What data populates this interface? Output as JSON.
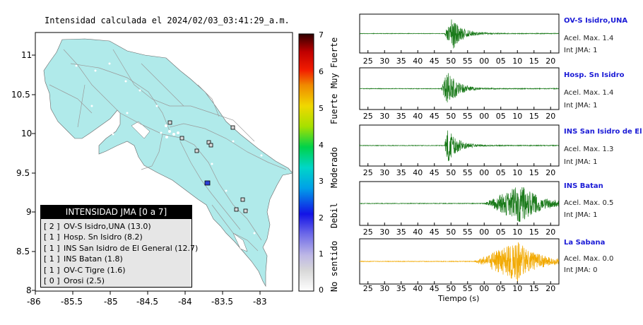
{
  "map": {
    "title": "Intensidad calculada el 2024/02/03_03:41:29_a.m.",
    "x_ticks": [
      "-86",
      "-85.5",
      "-85",
      "-84.5",
      "-84",
      "-83.5",
      "-83"
    ],
    "y_ticks": [
      "11",
      "10.5",
      "10",
      "9.5",
      "9",
      "8.5",
      "8"
    ],
    "land_color": "#b0eaea",
    "legend_title": "INTENSIDAD JMA [0 a 7]",
    "legend_items": [
      {
        "bracket": "[ 2 ]",
        "text": "OV-S Isidro,UNA (13.0)"
      },
      {
        "bracket": "[ 1 ]",
        "text": "Hosp. Sn Isidro (8.2)"
      },
      {
        "bracket": "[ 1 ]",
        "text": "INS San Isidro de El General (12.7)"
      },
      {
        "bracket": "[ 1 ]",
        "text": "INS Batan (1.8)"
      },
      {
        "bracket": "[ 1 ]",
        "text": "OV-C Tigre (1.6)"
      },
      {
        "bracket": "[ 0 ]",
        "text": "Orosi (2.5)"
      }
    ]
  },
  "colorbar": {
    "tick_labels": [
      "0",
      "1",
      "2",
      "3",
      "4",
      "5",
      "6",
      "7"
    ],
    "category_labels": [
      "No sentido",
      "Debil",
      "Moderado",
      "Fuerte",
      "Muy Fuerte"
    ]
  },
  "waveforms": {
    "x_label": "Tiempo (s)",
    "stations": [
      {
        "name": "OV-S Isidro,UNA",
        "accel": "Acel. Max. 1.4",
        "jma": "Int JMA: 1",
        "ticks": [
          "25",
          "30",
          "35",
          "40",
          "45",
          "50",
          "55",
          "60",
          "65",
          "70",
          "75",
          "80",
          "85",
          "90",
          "95",
          "100",
          "105",
          "110",
          "115",
          "120"
        ],
        "tick_display": [
          "25",
          "30",
          "35",
          "40",
          "45",
          "50",
          "55",
          "00",
          "05",
          "10",
          "15",
          "20"
        ],
        "color": "#1a7a1a"
      },
      {
        "name": "Hosp. Sn Isidro",
        "accel": "Acel. Max. 1.4",
        "jma": "Int JMA: 1",
        "tick_display": [
          "25",
          "30",
          "35",
          "40",
          "45",
          "50",
          "55",
          "00",
          "05",
          "10",
          "15",
          "20"
        ],
        "color": "#1a7a1a"
      },
      {
        "name": "INS San Isidro de El Ge",
        "accel": "Acel. Max. 1.3",
        "jma": "Int JMA: 1",
        "tick_display": [
          "25",
          "30",
          "35",
          "40",
          "45",
          "50",
          "55",
          "00",
          "05",
          "10",
          "15",
          "20"
        ],
        "color": "#1a7a1a"
      },
      {
        "name": "INS Batan",
        "accel": "Acel. Max. 0.5",
        "jma": "Int JMA: 1",
        "tick_display": [
          "25",
          "30",
          "35",
          "40",
          "45",
          "50",
          "55",
          "00",
          "05",
          "10",
          "15",
          "20"
        ],
        "color": "#1a7a1a"
      },
      {
        "name": "La Sabana",
        "accel": "Acel. Max. 0.0",
        "jma": "Int JMA: 0",
        "tick_display": [
          "25",
          "30",
          "35",
          "40",
          "45",
          "50",
          "55",
          "00",
          "05",
          "10",
          "15",
          "20"
        ],
        "color": "#f2a900"
      }
    ]
  },
  "chart_data": [
    {
      "type": "map",
      "title": "Intensidad calculada el 2024/02/03_03:41:29_a.m.",
      "xlim": [
        -86,
        -82.6
      ],
      "ylim": [
        8,
        11.3
      ],
      "x_ticks": [
        -86,
        -85.5,
        -85,
        -84.5,
        -84,
        -83.5,
        -83
      ],
      "y_ticks": [
        8,
        8.5,
        9,
        9.5,
        10,
        10.5,
        11
      ],
      "stations": [
        {
          "name": "OV-S Isidro,UNA",
          "intensity": 2,
          "value": 13.0,
          "lon": -83.7,
          "lat": 9.38
        },
        {
          "name": "Hosp. Sn Isidro",
          "intensity": 1,
          "value": 8.2
        },
        {
          "name": "INS San Isidro de El General",
          "intensity": 1,
          "value": 12.7
        },
        {
          "name": "INS Batan",
          "intensity": 1,
          "value": 1.8
        },
        {
          "name": "OV-C Tigre",
          "intensity": 1,
          "value": 1.6
        },
        {
          "name": "Orosi",
          "intensity": 0,
          "value": 2.5
        }
      ]
    },
    {
      "type": "colorbar",
      "range": [
        0,
        7
      ],
      "ticks": [
        0,
        1,
        2,
        3,
        4,
        5,
        6,
        7
      ],
      "categories": [
        "No sentido",
        "Debil",
        "Moderado",
        "Fuerte",
        "Muy Fuerte"
      ]
    },
    {
      "type": "line",
      "xlabel": "Tiempo (s)",
      "x_tick_labels": [
        "25",
        "30",
        "35",
        "40",
        "45",
        "50",
        "55",
        "00",
        "05",
        "10",
        "15",
        "20"
      ],
      "series": [
        {
          "name": "OV-S Isidro,UNA",
          "accel_max": 1.4,
          "int_jma": 1,
          "onset": 48,
          "peak_time": 50.5
        },
        {
          "name": "Hosp. Sn Isidro",
          "accel_max": 1.4,
          "int_jma": 1,
          "onset": 47,
          "peak_time": 49
        },
        {
          "name": "INS San Isidro de El Ge",
          "accel_max": 1.3,
          "int_jma": 1,
          "onset": 48,
          "peak_time": 49
        },
        {
          "name": "INS Batan",
          "accel_max": 0.5,
          "int_jma": 1,
          "onset": 60,
          "peak_time": 71
        },
        {
          "name": "La Sabana",
          "accel_max": 0.0,
          "int_jma": 0,
          "onset": 57,
          "peak_time": 70
        }
      ]
    }
  ]
}
